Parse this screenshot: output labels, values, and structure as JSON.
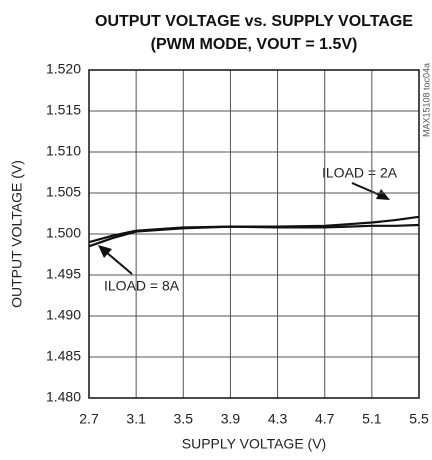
{
  "chart_data": {
    "type": "line",
    "title": "OUTPUT VOLTAGE vs. SUPPLY VOLTAGE",
    "subtitle": "(PWM MODE, VOUT = 1.5V)",
    "x_label": "SUPPLY VOLTAGE (V)",
    "y_label": "OUTPUT VOLTAGE (V)",
    "side_note": "MAX15108 toc04a",
    "x": [
      2.7,
      2.9,
      3.1,
      3.3,
      3.5,
      3.9,
      4.3,
      4.7,
      4.9,
      5.1,
      5.3,
      5.5
    ],
    "series": [
      {
        "name": "ILOAD = 2A",
        "color": "#111111",
        "values": [
          1.499,
          1.4998,
          1.5004,
          1.5006,
          1.5008,
          1.5009,
          1.5009,
          1.501,
          1.5012,
          1.5014,
          1.5017,
          1.5021
        ]
      },
      {
        "name": "ILOAD = 8A",
        "color": "#111111",
        "values": [
          1.4985,
          1.4995,
          1.5003,
          1.5005,
          1.5007,
          1.5009,
          1.5008,
          1.5008,
          1.5009,
          1.501,
          1.501,
          1.5011
        ]
      }
    ],
    "xlim": [
      2.7,
      5.5
    ],
    "xticks": [
      2.7,
      3.1,
      3.5,
      3.9,
      4.3,
      4.7,
      5.1,
      5.5
    ],
    "ylim": [
      1.48,
      1.52
    ],
    "yticks": [
      {
        "value": 1.48,
        "label": "1.480"
      },
      1.485,
      {
        "value": 1.49,
        "label": "1.490"
      },
      1.495,
      {
        "value": 1.5,
        "label": "1.500"
      },
      1.505,
      {
        "value": 1.51,
        "label": "1.510"
      },
      1.515,
      {
        "value": 1.52,
        "label": "1.520"
      }
    ],
    "grid": true
  }
}
